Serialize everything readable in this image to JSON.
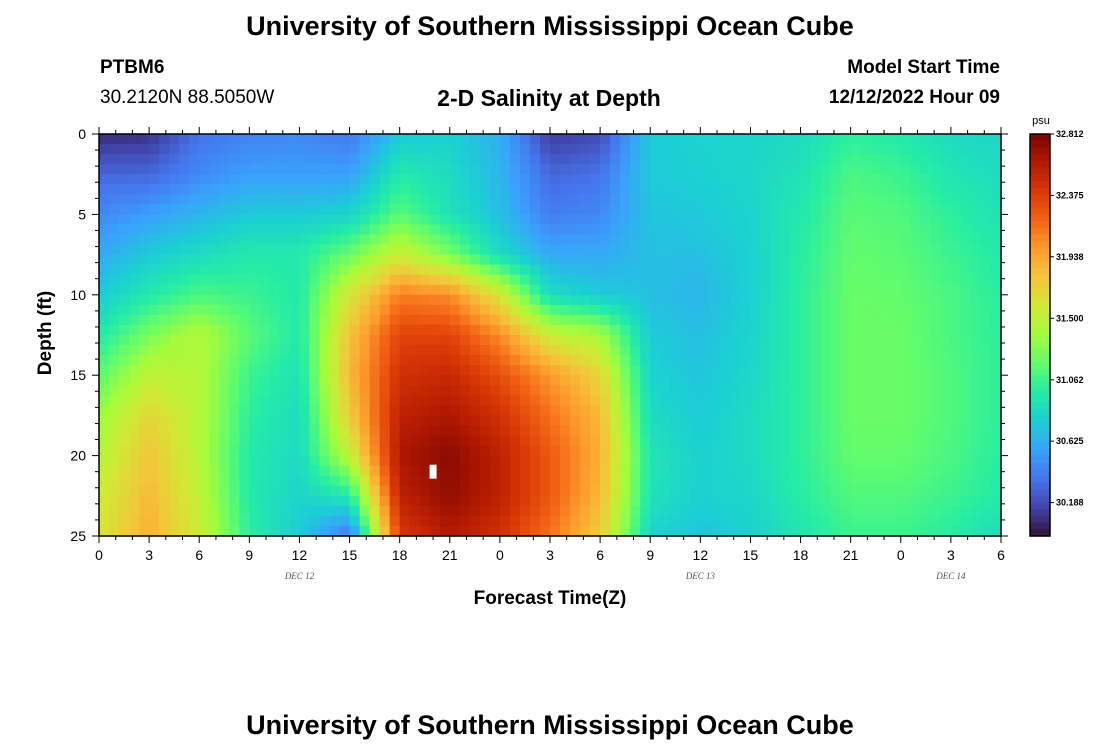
{
  "header": {
    "title": "University of Southern Mississippi Ocean Cube",
    "station_id": "PTBM6",
    "coordinates": "30.2120N  88.5050W",
    "subtitle": "2-D Salinity at Depth",
    "model_start_label": "Model Start Time",
    "model_start_value": "12/12/2022 Hour 09"
  },
  "footer": {
    "title": "University of Southern Mississippi Ocean Cube"
  },
  "chart_data": {
    "type": "heatmap",
    "title": "2-D Salinity at Depth",
    "xlabel": "Forecast Time(Z)",
    "ylabel": "Depth (ft)",
    "x_range_hours": [
      0,
      54
    ],
    "x_tick_labels": [
      "0",
      "3",
      "6",
      "9",
      "12",
      "15",
      "18",
      "21",
      "0",
      "3",
      "6",
      "9",
      "12",
      "15",
      "18",
      "21",
      "0",
      "3",
      "6"
    ],
    "date_labels": [
      {
        "hour": 12,
        "text": "DEC 12"
      },
      {
        "hour": 36,
        "text": "DEC 13"
      },
      {
        "hour": 51,
        "text": "DEC 14"
      }
    ],
    "y_range_ft": [
      0,
      25
    ],
    "y_ticks": [
      0,
      5,
      10,
      15,
      20,
      25
    ],
    "colorbar": {
      "unit": "psu",
      "min": 29.95,
      "max": 32.812,
      "tick_labels": [
        "32.812",
        "32.375",
        "31.938",
        "31.500",
        "31.062",
        "30.625",
        "30.188"
      ],
      "colors": [
        "#30123b",
        "#4145ab",
        "#4675ed",
        "#39a2fc",
        "#1bcfd4",
        "#24eca6",
        "#61fc6c",
        "#a4fc3b",
        "#d1e834",
        "#f3c63a",
        "#fe9b2d",
        "#f36315",
        "#d93806",
        "#b11901",
        "#7a0402"
      ]
    },
    "anomaly_marker": {
      "hour": 20,
      "depth_ft": 21
    },
    "time_hours": [
      0,
      3,
      6,
      9,
      12,
      15,
      18,
      21,
      24,
      27,
      30,
      33,
      36,
      39,
      42,
      45,
      48,
      51,
      54
    ],
    "depth_ft": [
      0,
      2.5,
      5,
      7.5,
      10,
      12.5,
      15,
      17.5,
      20,
      22.5,
      25
    ],
    "salinity_psu": [
      [
        30.05,
        30.08,
        30.35,
        30.42,
        30.45,
        30.38,
        30.75,
        30.78,
        30.62,
        30.12,
        30.18,
        30.75,
        30.8,
        30.8,
        30.85,
        31.0,
        30.95,
        30.85,
        30.82
      ],
      [
        30.3,
        30.3,
        30.45,
        30.55,
        30.55,
        30.55,
        30.95,
        30.85,
        30.65,
        30.3,
        30.35,
        30.75,
        30.78,
        30.82,
        30.9,
        31.1,
        31.05,
        30.92,
        30.85
      ],
      [
        30.45,
        30.55,
        30.65,
        30.75,
        30.75,
        30.8,
        31.15,
        30.9,
        30.7,
        30.4,
        30.45,
        30.72,
        30.75,
        30.8,
        30.95,
        31.15,
        31.12,
        31.0,
        30.9
      ],
      [
        30.6,
        30.75,
        30.85,
        30.95,
        30.95,
        31.2,
        31.55,
        31.25,
        30.85,
        30.6,
        30.6,
        30.7,
        30.7,
        30.78,
        30.98,
        31.18,
        31.15,
        31.05,
        30.95
      ],
      [
        30.75,
        30.95,
        31.1,
        31.05,
        30.95,
        31.6,
        32.1,
        32.05,
        31.6,
        30.85,
        30.75,
        30.7,
        30.65,
        30.78,
        31.0,
        31.2,
        31.18,
        31.1,
        30.98
      ],
      [
        30.95,
        31.25,
        31.45,
        31.15,
        30.95,
        31.8,
        32.35,
        32.35,
        32.05,
        31.55,
        31.4,
        30.75,
        30.7,
        30.8,
        31.0,
        31.2,
        31.2,
        31.1,
        31.0
      ],
      [
        31.15,
        31.5,
        31.45,
        31.05,
        30.9,
        31.85,
        32.45,
        32.5,
        32.3,
        32.0,
        31.7,
        30.8,
        30.72,
        30.82,
        31.0,
        31.2,
        31.2,
        31.12,
        31.0
      ],
      [
        31.35,
        31.7,
        31.45,
        31.0,
        30.85,
        31.75,
        32.55,
        32.62,
        32.45,
        32.15,
        31.85,
        30.85,
        30.75,
        30.85,
        31.0,
        31.2,
        31.2,
        31.12,
        31.0
      ],
      [
        31.45,
        31.8,
        31.45,
        30.95,
        30.85,
        31.5,
        32.62,
        32.75,
        32.55,
        32.25,
        31.9,
        30.92,
        30.78,
        30.85,
        31.0,
        31.18,
        31.18,
        31.1,
        30.98
      ],
      [
        31.55,
        31.85,
        31.5,
        30.95,
        30.8,
        30.95,
        32.55,
        32.72,
        32.55,
        32.25,
        31.85,
        30.9,
        30.78,
        30.82,
        30.98,
        31.12,
        31.12,
        31.05,
        30.95
      ],
      [
        31.6,
        31.9,
        31.55,
        31.0,
        30.75,
        30.35,
        32.4,
        32.6,
        32.45,
        32.15,
        31.75,
        30.8,
        30.72,
        30.78,
        30.92,
        31.05,
        31.05,
        30.98,
        30.85
      ]
    ]
  }
}
